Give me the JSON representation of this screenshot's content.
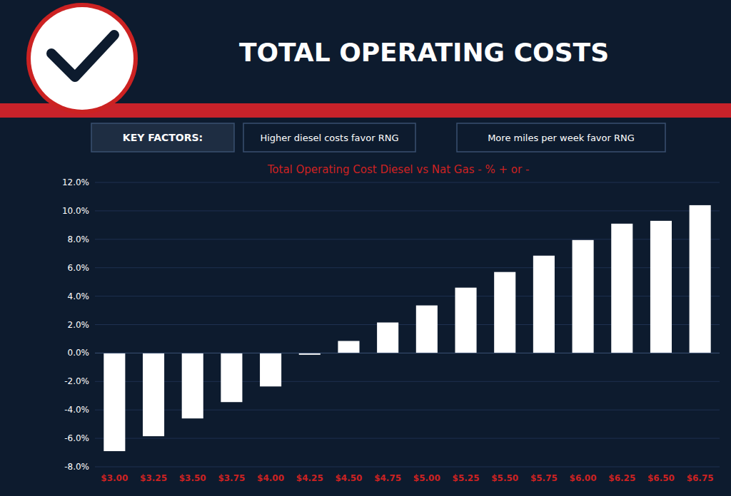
{
  "chart_data": {
    "type": "bar",
    "title": "TOTAL OPERATING COSTS",
    "subtitle": "Total Operating Cost Diesel vs Nat Gas - % + or -",
    "annotations": [
      "KEY FACTORS:",
      "Higher diesel costs favor RNG",
      "More miles per week favor RNG"
    ],
    "categories": [
      "$3.00",
      "$3.25",
      "$3.50",
      "$3.75",
      "$4.00",
      "$4.25",
      "$4.50",
      "$4.75",
      "$5.00",
      "$5.25",
      "$5.50",
      "$5.75",
      "$6.00",
      "$6.25",
      "$6.50",
      "$6.75"
    ],
    "values": [
      -6.9,
      -5.85,
      -4.6,
      -3.45,
      -2.35,
      -0.12,
      0.85,
      2.15,
      3.35,
      4.6,
      5.7,
      6.85,
      7.95,
      9.1,
      9.3,
      10.4
    ],
    "color": "#ffffff",
    "ylim": [
      -8.0,
      12.0
    ],
    "yticks": [
      {
        "value": -8.0,
        "label": "-8.0%"
      },
      {
        "value": -6.0,
        "label": "-6.0%"
      },
      {
        "value": -4.0,
        "label": "-4.0%"
      },
      {
        "value": -2.0,
        "label": "-2.0%"
      },
      {
        "value": 0.0,
        "label": "0.0%"
      },
      {
        "value": 2.0,
        "label": "2.0%"
      },
      {
        "value": 4.0,
        "label": "4.0%"
      },
      {
        "value": 6.0,
        "label": "6.0%"
      },
      {
        "value": 8.0,
        "label": "8.0%"
      },
      {
        "value": 10.0,
        "label": "10.0%"
      },
      {
        "value": 12.0,
        "label": "12.0%"
      }
    ],
    "grid": true
  }
}
